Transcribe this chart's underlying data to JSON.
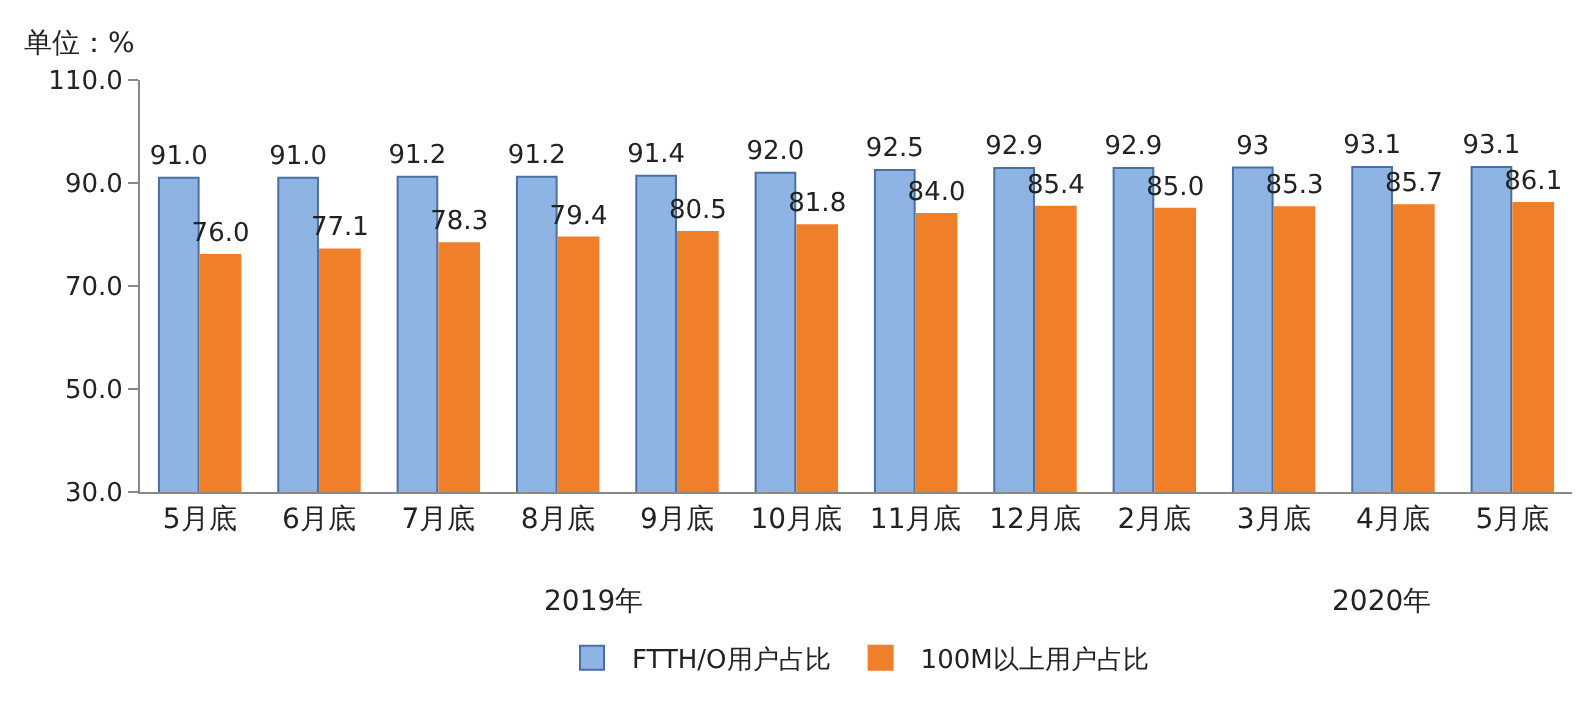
{
  "chart_data": {
    "type": "bar",
    "categories": [
      "5月底",
      "6月底",
      "7月底",
      "8月底",
      "9月底",
      "10月底",
      "11月底",
      "12月底",
      "2月底",
      "3月底",
      "4月底",
      "5月底"
    ],
    "series": [
      {
        "name": "FTTH/O用户占比",
        "color": "#8db4e2",
        "values": [
          91.0,
          91.0,
          91.2,
          91.2,
          91.4,
          92.0,
          92.5,
          92.9,
          92.9,
          93,
          93.1,
          93.1
        ],
        "value_labels": [
          "91.0",
          "91.0",
          "91.2",
          "91.2",
          "91.4",
          "92.0",
          "92.5",
          "92.9",
          "92.9",
          "93",
          "93.1",
          "93.1"
        ]
      },
      {
        "name": "100M以上用户占比",
        "color": "#f07f2a",
        "values": [
          76.0,
          77.1,
          78.3,
          79.4,
          80.5,
          81.8,
          84.0,
          85.4,
          85.0,
          85.3,
          85.7,
          86.1
        ],
        "value_labels": [
          "76.0",
          "77.1",
          "78.3",
          "79.4",
          "80.5",
          "81.8",
          "84.0",
          "85.4",
          "85.0",
          "85.3",
          "85.7",
          "86.1"
        ]
      }
    ],
    "ylim": [
      30,
      110
    ],
    "yticks": [
      {
        "value": 30,
        "label": "30.0"
      },
      {
        "value": 50,
        "label": "50.0"
      },
      {
        "value": 70,
        "label": "70.0"
      },
      {
        "value": 90,
        "label": "90.0"
      },
      {
        "value": 110,
        "label": "110.0"
      }
    ],
    "annotations": [
      "单位：%",
      "2019年",
      "2020年"
    ],
    "legend": "bottom"
  }
}
